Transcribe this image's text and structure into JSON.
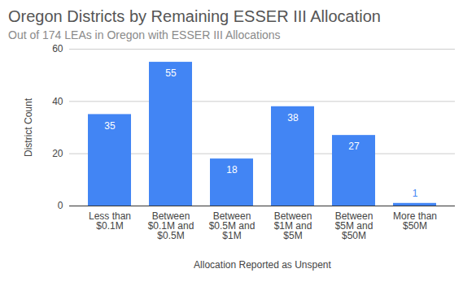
{
  "chart_data": {
    "type": "bar",
    "title": "Oregon Districts by Remaining ESSER III Allocation",
    "subtitle": "Out of 174 LEAs in Oregon with ESSER III Allocations",
    "x_label": "Allocation Reported as Unspent",
    "y_label": "District Count",
    "categories": [
      "Less than $0.1M",
      "Between $0.1M and $0.5M",
      "Between $0.5M and $1M",
      "Between $1M and $5M",
      "Between $5M and $50M",
      "More than $50M"
    ],
    "values": [
      35,
      55,
      18,
      38,
      27,
      1
    ],
    "color": "#4285f4",
    "ylim": [
      0,
      60
    ],
    "yticks": [
      0,
      20,
      40,
      60
    ],
    "grid": true,
    "data_labels": true
  }
}
